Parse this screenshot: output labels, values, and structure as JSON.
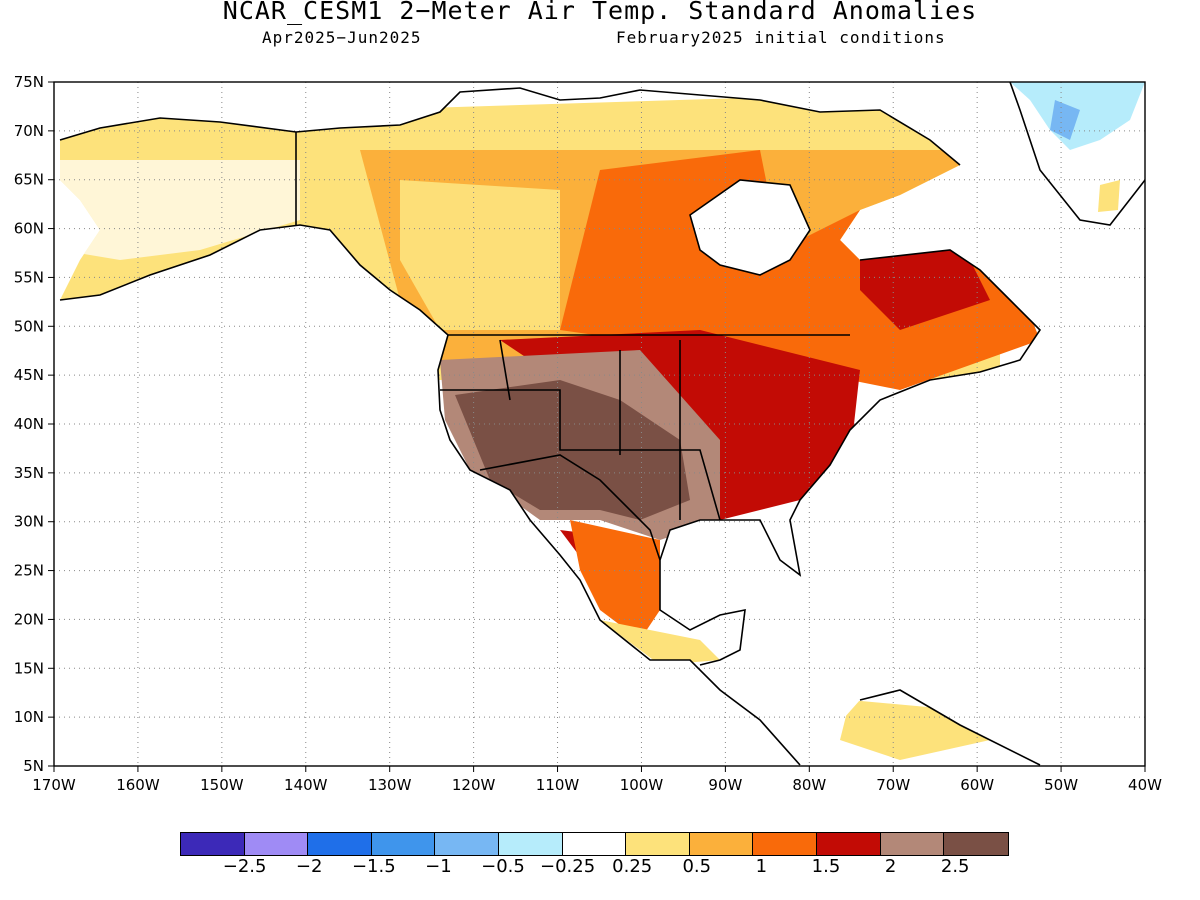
{
  "header": {
    "title": "NCAR_CESM1 2−Meter Air Temp. Standard Anomalies",
    "period": "Apr2025−Jun2025",
    "init": "February2025 initial conditions"
  },
  "map": {
    "lon_labels": [
      "170W",
      "160W",
      "150W",
      "140W",
      "130W",
      "120W",
      "110W",
      "100W",
      "90W",
      "80W",
      "70W",
      "60W",
      "50W",
      "40W"
    ],
    "lat_labels": [
      "75N",
      "70N",
      "65N",
      "60N",
      "55N",
      "50N",
      "45N",
      "40N",
      "35N",
      "30N",
      "25N",
      "20N",
      "15N",
      "10N",
      "5N"
    ],
    "lon_range": [
      -170,
      -40
    ],
    "lat_range": [
      5,
      75
    ],
    "grid": "dotted"
  },
  "colorbar": {
    "colors": [
      "#3c29b8",
      "#9f8bf5",
      "#1f6fe9",
      "#3f95ec",
      "#77b7f3",
      "#b6ecfb",
      "#ffffff",
      "#fde27b",
      "#fbb03b",
      "#f96a0a",
      "#c20b05",
      "#b38878",
      "#7a5045"
    ],
    "labels": [
      "−2.5",
      "−2",
      "−1.5",
      "−1",
      "−0.5",
      "−0.25",
      "0.25",
      "0.5",
      "1",
      "1.5",
      "2",
      "2.5"
    ]
  }
}
